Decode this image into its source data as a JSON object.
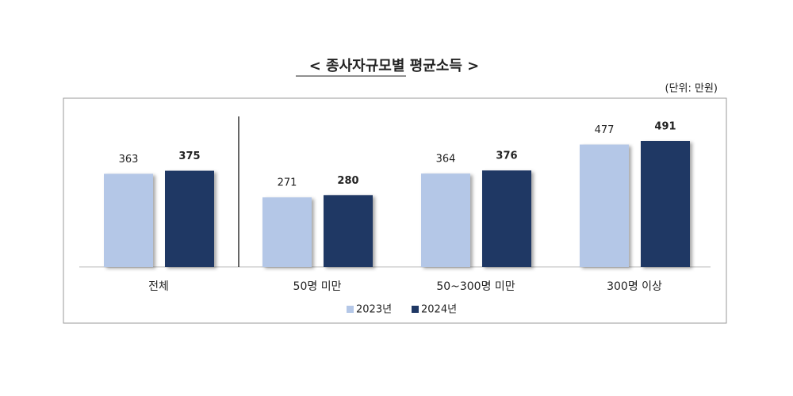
{
  "chart_data": {
    "type": "bar",
    "title": "< 종사자규모별 평균소득 >",
    "unit_label": "(단위: 만원)",
    "categories": [
      "전체",
      "50명 미만",
      "50~300명 미만",
      "300명 이상"
    ],
    "series": [
      {
        "name": "2023년",
        "color": "#b4c7e7",
        "values": [
          363,
          271,
          364,
          477
        ]
      },
      {
        "name": "2024년",
        "color": "#1f3864",
        "values": [
          375,
          280,
          376,
          491
        ]
      }
    ],
    "legend": "bottom"
  }
}
